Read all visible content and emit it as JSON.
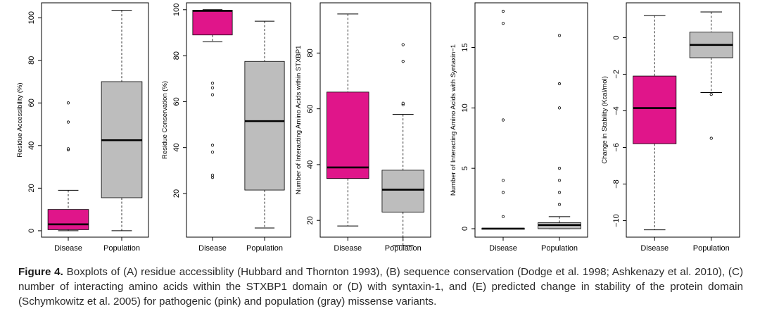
{
  "colors": {
    "disease": "#e0158a",
    "population": "#bdbdbd",
    "outline": "#000000"
  },
  "chart_data": [
    {
      "id": "A",
      "type": "boxplot",
      "ylabel": "Residue Accessibility (%)",
      "categories": [
        "Disease",
        "Population"
      ],
      "ylim": [
        -3,
        107
      ],
      "yticks": [
        0,
        20,
        40,
        60,
        80,
        100
      ],
      "boxes": [
        {
          "name": "Disease",
          "whisker_low": 0,
          "q1": 0.5,
          "median": 3,
          "q3": 10,
          "whisker_high": 19,
          "outliers": [
            38,
            38.5,
            51,
            60
          ]
        },
        {
          "name": "Population",
          "whisker_low": 0,
          "q1": 15.5,
          "median": 42.5,
          "q3": 70,
          "whisker_high": 103.5,
          "outliers": []
        }
      ]
    },
    {
      "id": "B",
      "type": "boxplot",
      "ylabel": "Residue Conservation (%)",
      "categories": [
        "Disease",
        "Population"
      ],
      "ylim": [
        1,
        103
      ],
      "yticks": [
        20,
        40,
        60,
        80,
        100
      ],
      "boxes": [
        {
          "name": "Disease",
          "whisker_low": 86,
          "q1": 89,
          "median": 99.5,
          "q3": 99.8,
          "whisker_high": 100,
          "outliers": [
            27,
            28,
            38,
            41,
            63,
            66,
            68
          ]
        },
        {
          "name": "Population",
          "whisker_low": 5,
          "q1": 21.5,
          "median": 51.5,
          "q3": 77.5,
          "whisker_high": 95,
          "outliers": []
        }
      ]
    },
    {
      "id": "C",
      "type": "boxplot",
      "ylabel": "Number of Interacting Amino Acids within STXBP1",
      "categories": [
        "Disease",
        "Population"
      ],
      "ylim": [
        14,
        98
      ],
      "yticks": [
        20,
        40,
        60,
        80
      ],
      "boxes": [
        {
          "name": "Disease",
          "whisker_low": 18,
          "q1": 35,
          "median": 39,
          "q3": 66,
          "whisker_high": 94,
          "outliers": []
        },
        {
          "name": "Population",
          "whisker_low": 11,
          "q1": 23,
          "median": 31,
          "q3": 38,
          "whisker_high": 58,
          "outliers": [
            61.5,
            62,
            77,
            83
          ]
        }
      ]
    },
    {
      "id": "D",
      "type": "boxplot",
      "ylabel": "Number of Interacting Amino Acids with Syntaxin−1",
      "categories": [
        "Disease",
        "Population"
      ],
      "ylim": [
        -0.7,
        18.7
      ],
      "yticks": [
        0,
        5,
        10,
        15
      ],
      "boxes": [
        {
          "name": "Disease",
          "whisker_low": 0,
          "q1": 0,
          "median": 0,
          "q3": 0,
          "whisker_high": 0,
          "outliers": [
            1,
            3,
            4,
            9,
            17,
            18
          ]
        },
        {
          "name": "Population",
          "whisker_low": 0,
          "q1": 0,
          "median": 0.3,
          "q3": 0.5,
          "whisker_high": 1,
          "outliers": [
            2,
            3,
            4,
            5,
            10,
            12,
            16
          ]
        }
      ]
    },
    {
      "id": "E",
      "type": "boxplot",
      "ylabel": "Change in Stability (Kcal/mol)",
      "categories": [
        "Disease",
        "Population"
      ],
      "ylim": [
        -10.9,
        1.9
      ],
      "yticks": [
        -10,
        -8,
        -6,
        -4,
        -2,
        0
      ],
      "boxes": [
        {
          "name": "Disease",
          "whisker_low": -10.5,
          "q1": -5.8,
          "median": -3.85,
          "q3": -2.1,
          "whisker_high": 1.2,
          "outliers": []
        },
        {
          "name": "Population",
          "whisker_low": -3,
          "q1": -1.1,
          "median": -0.4,
          "q3": 0.3,
          "whisker_high": 1.4,
          "outliers": [
            -3.1,
            -5.5
          ]
        }
      ]
    }
  ],
  "caption": {
    "label": "Figure 4.",
    "text": " Boxplots of (A) residue accessiblity (Hubbard and Thornton 1993), (B) sequence conservation (Dodge et al. 1998; Ashkenazy et al. 2010), (C) number of interacting amino acids within the STXBP1 domain or (D) with syntaxin-1, and (E) predicted change in stability of the protein domain (Schymkowitz et al. 2005) for pathogenic (pink) and population (gray) missense variants."
  }
}
